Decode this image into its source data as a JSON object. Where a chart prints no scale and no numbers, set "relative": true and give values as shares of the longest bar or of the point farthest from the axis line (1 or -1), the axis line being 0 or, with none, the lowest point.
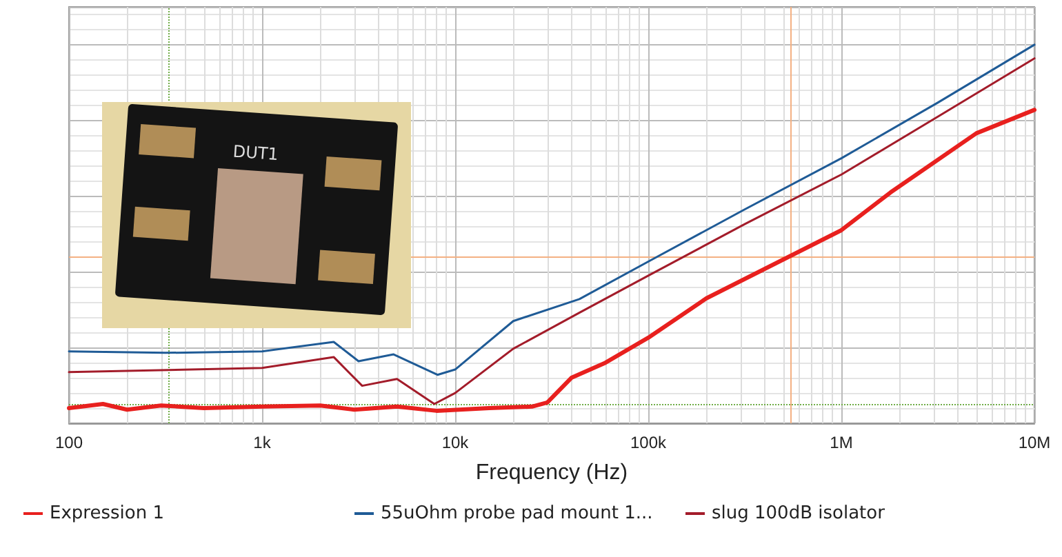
{
  "chart_data": {
    "type": "line",
    "xlabel": "Frequency (Hz)",
    "log": "x",
    "relative": true,
    "grid": true,
    "legend": "bottom",
    "marker": "none",
    "line_style": "solid",
    "xlim": [
      100,
      10000000
    ],
    "xticks": [
      {
        "value": 100,
        "label": "100"
      },
      {
        "value": 1000,
        "label": "1k"
      },
      {
        "value": 10000,
        "label": "10k"
      },
      {
        "value": 100000,
        "label": "100k"
      },
      {
        "value": 1000000,
        "label": "1M"
      },
      {
        "value": 10000000,
        "label": "10M"
      }
    ],
    "annotations": [
      "DUT1"
    ],
    "ref_lines": [
      {
        "axis": "x",
        "value": 544000,
        "color": "#f4b183",
        "line_style": "solid"
      },
      {
        "axis": "y",
        "value": 0.438,
        "color": "#f4b183",
        "line_style": "solid"
      },
      {
        "axis": "x",
        "value": 327,
        "color": "#70ad47",
        "line_style": "dotted"
      },
      {
        "axis": "y",
        "value": 0.051,
        "color": "#70ad47",
        "line_style": "dotted"
      }
    ],
    "series": [
      {
        "name": "Expression 1",
        "color": "#e8201e",
        "x": [
          100,
          150,
          200,
          300,
          500,
          1000,
          2000,
          3000,
          5000,
          8000,
          15000,
          25000,
          30000,
          40000,
          60000,
          100000,
          200000,
          1000000,
          1800000,
          5000000,
          10000000
        ],
        "values": [
          0.04,
          0.051,
          0.036,
          0.047,
          0.04,
          0.044,
          0.047,
          0.036,
          0.044,
          0.033,
          0.04,
          0.044,
          0.055,
          0.12,
          0.16,
          0.226,
          0.33,
          0.51,
          0.61,
          0.766,
          0.828
        ]
      },
      {
        "name": "55uOhm probe pad mount 1...",
        "color": "#1f5b96",
        "x": [
          100,
          316,
          1000,
          2350,
          3160,
          4800,
          8100,
          10000,
          20000,
          44000,
          100000,
          316000,
          1000000,
          3160000,
          10000000
        ],
        "values": [
          0.19,
          0.186,
          0.19,
          0.215,
          0.164,
          0.182,
          0.128,
          0.142,
          0.27,
          0.328,
          0.427,
          0.565,
          0.7,
          0.847,
          1.0
        ]
      },
      {
        "name": "slug 100dB isolator",
        "color": "#a31c2a",
        "x": [
          100,
          1000,
          2350,
          3300,
          5000,
          7800,
          10000,
          20000,
          44000,
          100000,
          316000,
          1000000,
          3160000,
          10000000
        ],
        "values": [
          0.135,
          0.146,
          0.175,
          0.099,
          0.117,
          0.051,
          0.08,
          0.197,
          0.292,
          0.39,
          0.526,
          0.657,
          0.81,
          0.964
        ]
      }
    ]
  }
}
